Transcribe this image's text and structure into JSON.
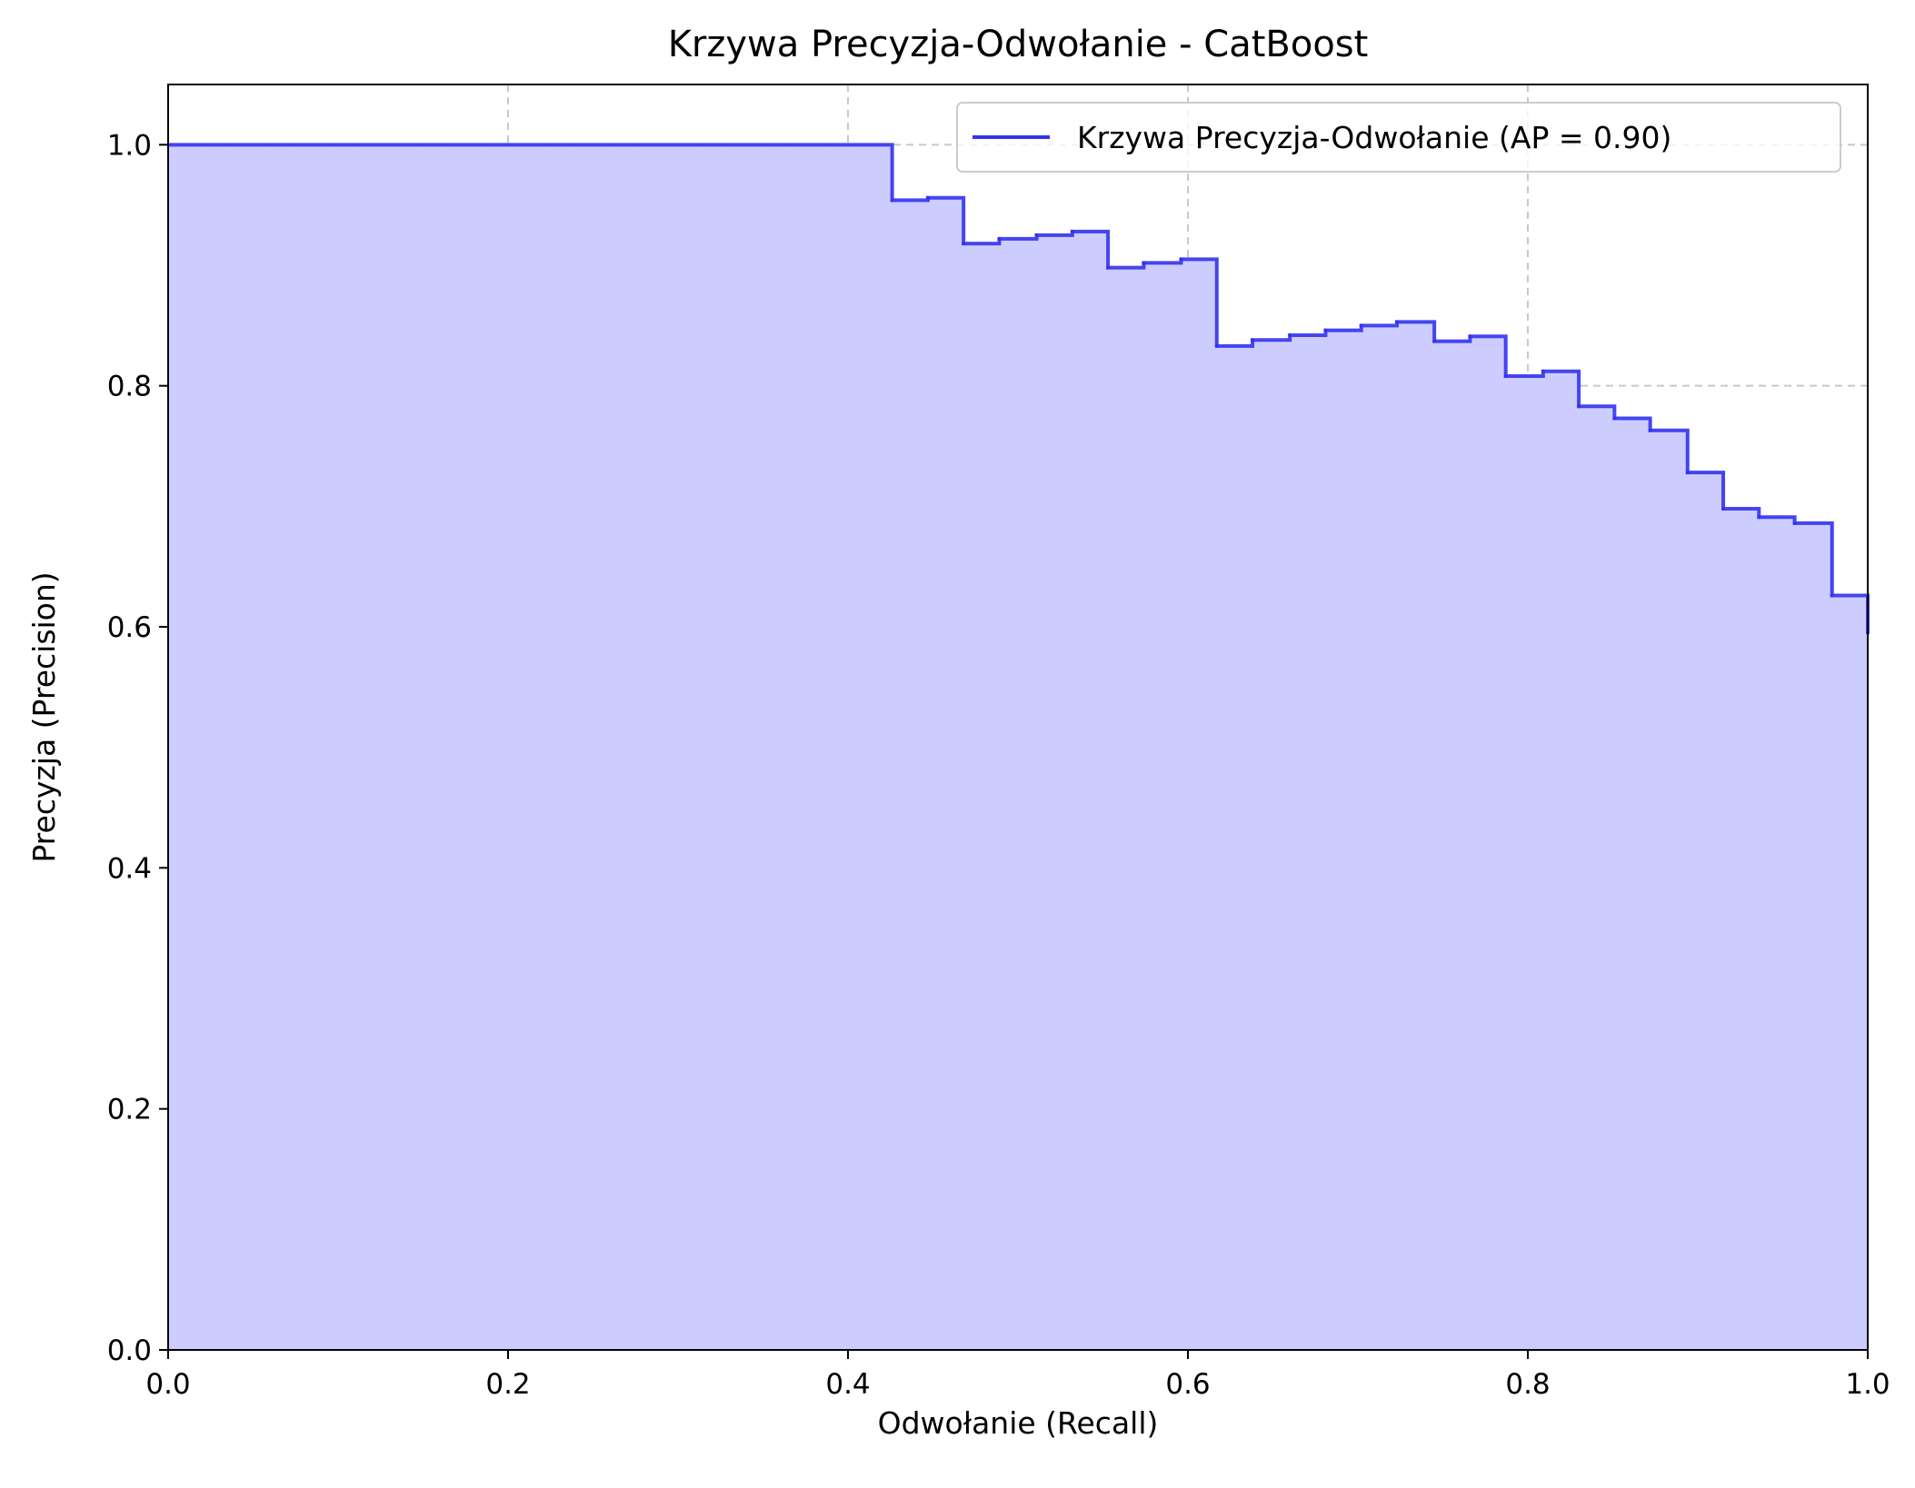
{
  "chart_data": {
    "type": "area",
    "title": "Krzywa Precyzja-Odwołanie - CatBoost",
    "xlabel": "Odwołanie (Recall)",
    "ylabel": "Precyzja (Precision)",
    "xlim": [
      0,
      1
    ],
    "ylim": [
      0,
      1.05
    ],
    "xticks": [
      "0.0",
      "0.2",
      "0.4",
      "0.6",
      "0.8",
      "1.0"
    ],
    "yticks": [
      "0.0",
      "0.2",
      "0.4",
      "0.6",
      "0.8",
      "1.0"
    ],
    "grid": true,
    "legend_position": "top-right",
    "step": "post",
    "series": [
      {
        "name": "Krzywa Precyzja-Odwołanie (AP = 0.90)",
        "color": "#3333ee",
        "fill_color": "#ccccff",
        "x": [
          0.0,
          0.426,
          0.447,
          0.468,
          0.489,
          0.511,
          0.532,
          0.553,
          0.574,
          0.596,
          0.617,
          0.638,
          0.66,
          0.681,
          0.702,
          0.723,
          0.745,
          0.766,
          0.787,
          0.809,
          0.83,
          0.851,
          0.872,
          0.894,
          0.915,
          0.936,
          0.957,
          0.979,
          1.0
        ],
        "y": [
          1.0,
          0.954,
          0.956,
          0.918,
          0.922,
          0.925,
          0.928,
          0.898,
          0.902,
          0.905,
          0.833,
          0.838,
          0.842,
          0.846,
          0.85,
          0.853,
          0.837,
          0.841,
          0.808,
          0.812,
          0.783,
          0.773,
          0.763,
          0.728,
          0.698,
          0.691,
          0.686,
          0.626,
          0.595
        ]
      }
    ]
  }
}
